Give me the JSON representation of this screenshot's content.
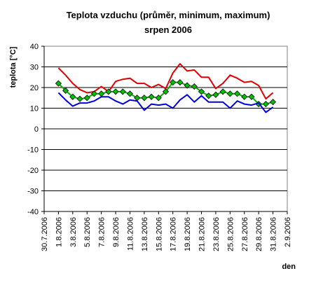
{
  "chart_data": {
    "type": "line",
    "title": "Teplota vzduchu (průměr, minimum, maximum)",
    "subtitle": "srpen 2006",
    "xlabel": "den",
    "ylabel": "teplota [°C]",
    "ylim": [
      -40,
      40
    ],
    "yticks": [
      40,
      30,
      20,
      10,
      0,
      -10,
      -20,
      -30,
      -40
    ],
    "xlim": [
      "30.7.2006",
      "2.9.2006"
    ],
    "xtick_labels": [
      "30.7.2006",
      "1.8.2006",
      "3.8.2006",
      "5.8.2006",
      "7.8.2006",
      "9.8.2006",
      "11.8.2006",
      "13.8.2006",
      "15.8.2006",
      "17.8.2006",
      "19.8.2006",
      "21.8.2006",
      "23.8.2006",
      "25.8.2006",
      "27.8.2006",
      "29.8.2006",
      "31.8.2006",
      "2.9.2006"
    ],
    "grid": "horizontal",
    "x": [
      "1.8.2006",
      "2.8.2006",
      "3.8.2006",
      "4.8.2006",
      "5.8.2006",
      "6.8.2006",
      "7.8.2006",
      "8.8.2006",
      "9.8.2006",
      "10.8.2006",
      "11.8.2006",
      "12.8.2006",
      "13.8.2006",
      "14.8.2006",
      "15.8.2006",
      "16.8.2006",
      "17.8.2006",
      "18.8.2006",
      "19.8.2006",
      "20.8.2006",
      "21.8.2006",
      "22.8.2006",
      "23.8.2006",
      "24.8.2006",
      "25.8.2006",
      "26.8.2006",
      "27.8.2006",
      "28.8.2006",
      "29.8.2006",
      "30.8.2006",
      "31.8.2006"
    ],
    "series": [
      {
        "color": "#e00000",
        "marker": "none",
        "values": [
          29.5,
          26,
          22,
          19,
          17.5,
          18,
          20.5,
          18,
          23,
          24,
          24.5,
          22,
          22,
          20,
          21.5,
          19.5,
          27,
          31.5,
          28,
          28.5,
          25,
          25,
          19.5,
          22,
          26,
          24.5,
          22.5,
          23,
          21,
          14.5,
          17.5
        ]
      },
      {
        "color": "#00b000",
        "marker": "diamond",
        "marker_color": "#00c000",
        "values": [
          22,
          18.5,
          15.5,
          14.5,
          15,
          17,
          17,
          18,
          18,
          18,
          17,
          15,
          15,
          15.5,
          15,
          18,
          22.5,
          22.5,
          21,
          20.5,
          18,
          16,
          16.5,
          18,
          17,
          17,
          15.5,
          15.5,
          12,
          12,
          13
        ]
      },
      {
        "color": "#0000e0",
        "marker": "none",
        "values": [
          17.5,
          14,
          11,
          12.5,
          12.5,
          13.5,
          15.5,
          15.5,
          13.5,
          12,
          14,
          13.5,
          9,
          12,
          11.5,
          12,
          10,
          14,
          16.5,
          13,
          16,
          13,
          13,
          13,
          10,
          13.5,
          12,
          11.5,
          12.5,
          8,
          10.5
        ]
      }
    ]
  }
}
